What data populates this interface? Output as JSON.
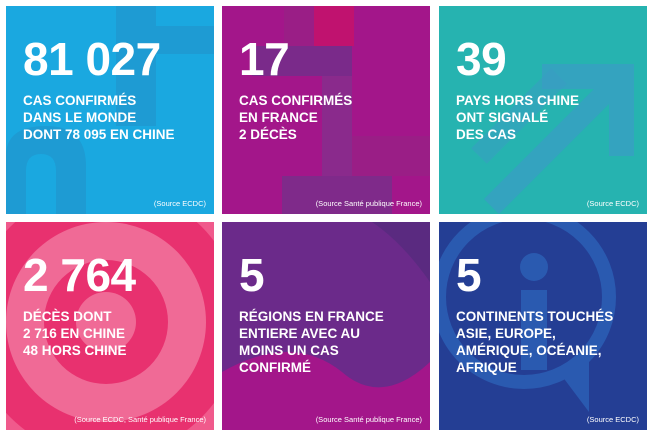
{
  "tiles": [
    {
      "number": "81 027",
      "description": "CAS CONFIRMÉS\nDANS LE MONDE\nDONT 78 095 EN CHINE",
      "source": "(Source ECDC)",
      "color": "#1aa8e0"
    },
    {
      "number": "17",
      "description": "CAS CONFIRMÉS\nEN FRANCE\n2 DÉCÈS",
      "source": "(Source Santé publique France)",
      "color": "#a3168a"
    },
    {
      "number": "39",
      "description": "PAYS HORS CHINE\nONT SIGNALÉ\nDES CAS",
      "source": "(Source ECDC)",
      "color": "#26b3b0"
    },
    {
      "number": "2 764",
      "description": "DÉCÈS DONT\n2 716 EN CHINE\n48 HORS CHINE",
      "source": "(Source ECDC, Santé publique France)",
      "color": "#e8417a"
    },
    {
      "number": "5",
      "description": "RÉGIONS EN FRANCE\nENTIERE AVEC AU\nMOINS UN CAS\nCONFIRMÉ",
      "source": "(Source Santé publique France)",
      "color": "#6b2a8a"
    },
    {
      "number": "5",
      "description": "CONTINENTS TOUCHÉS\nASIE, EUROPE,\nAMÉRIQUE, OCÉANIE,\nAFRIQUE",
      "source": "(Source ECDC)",
      "color": "#243e94"
    }
  ]
}
